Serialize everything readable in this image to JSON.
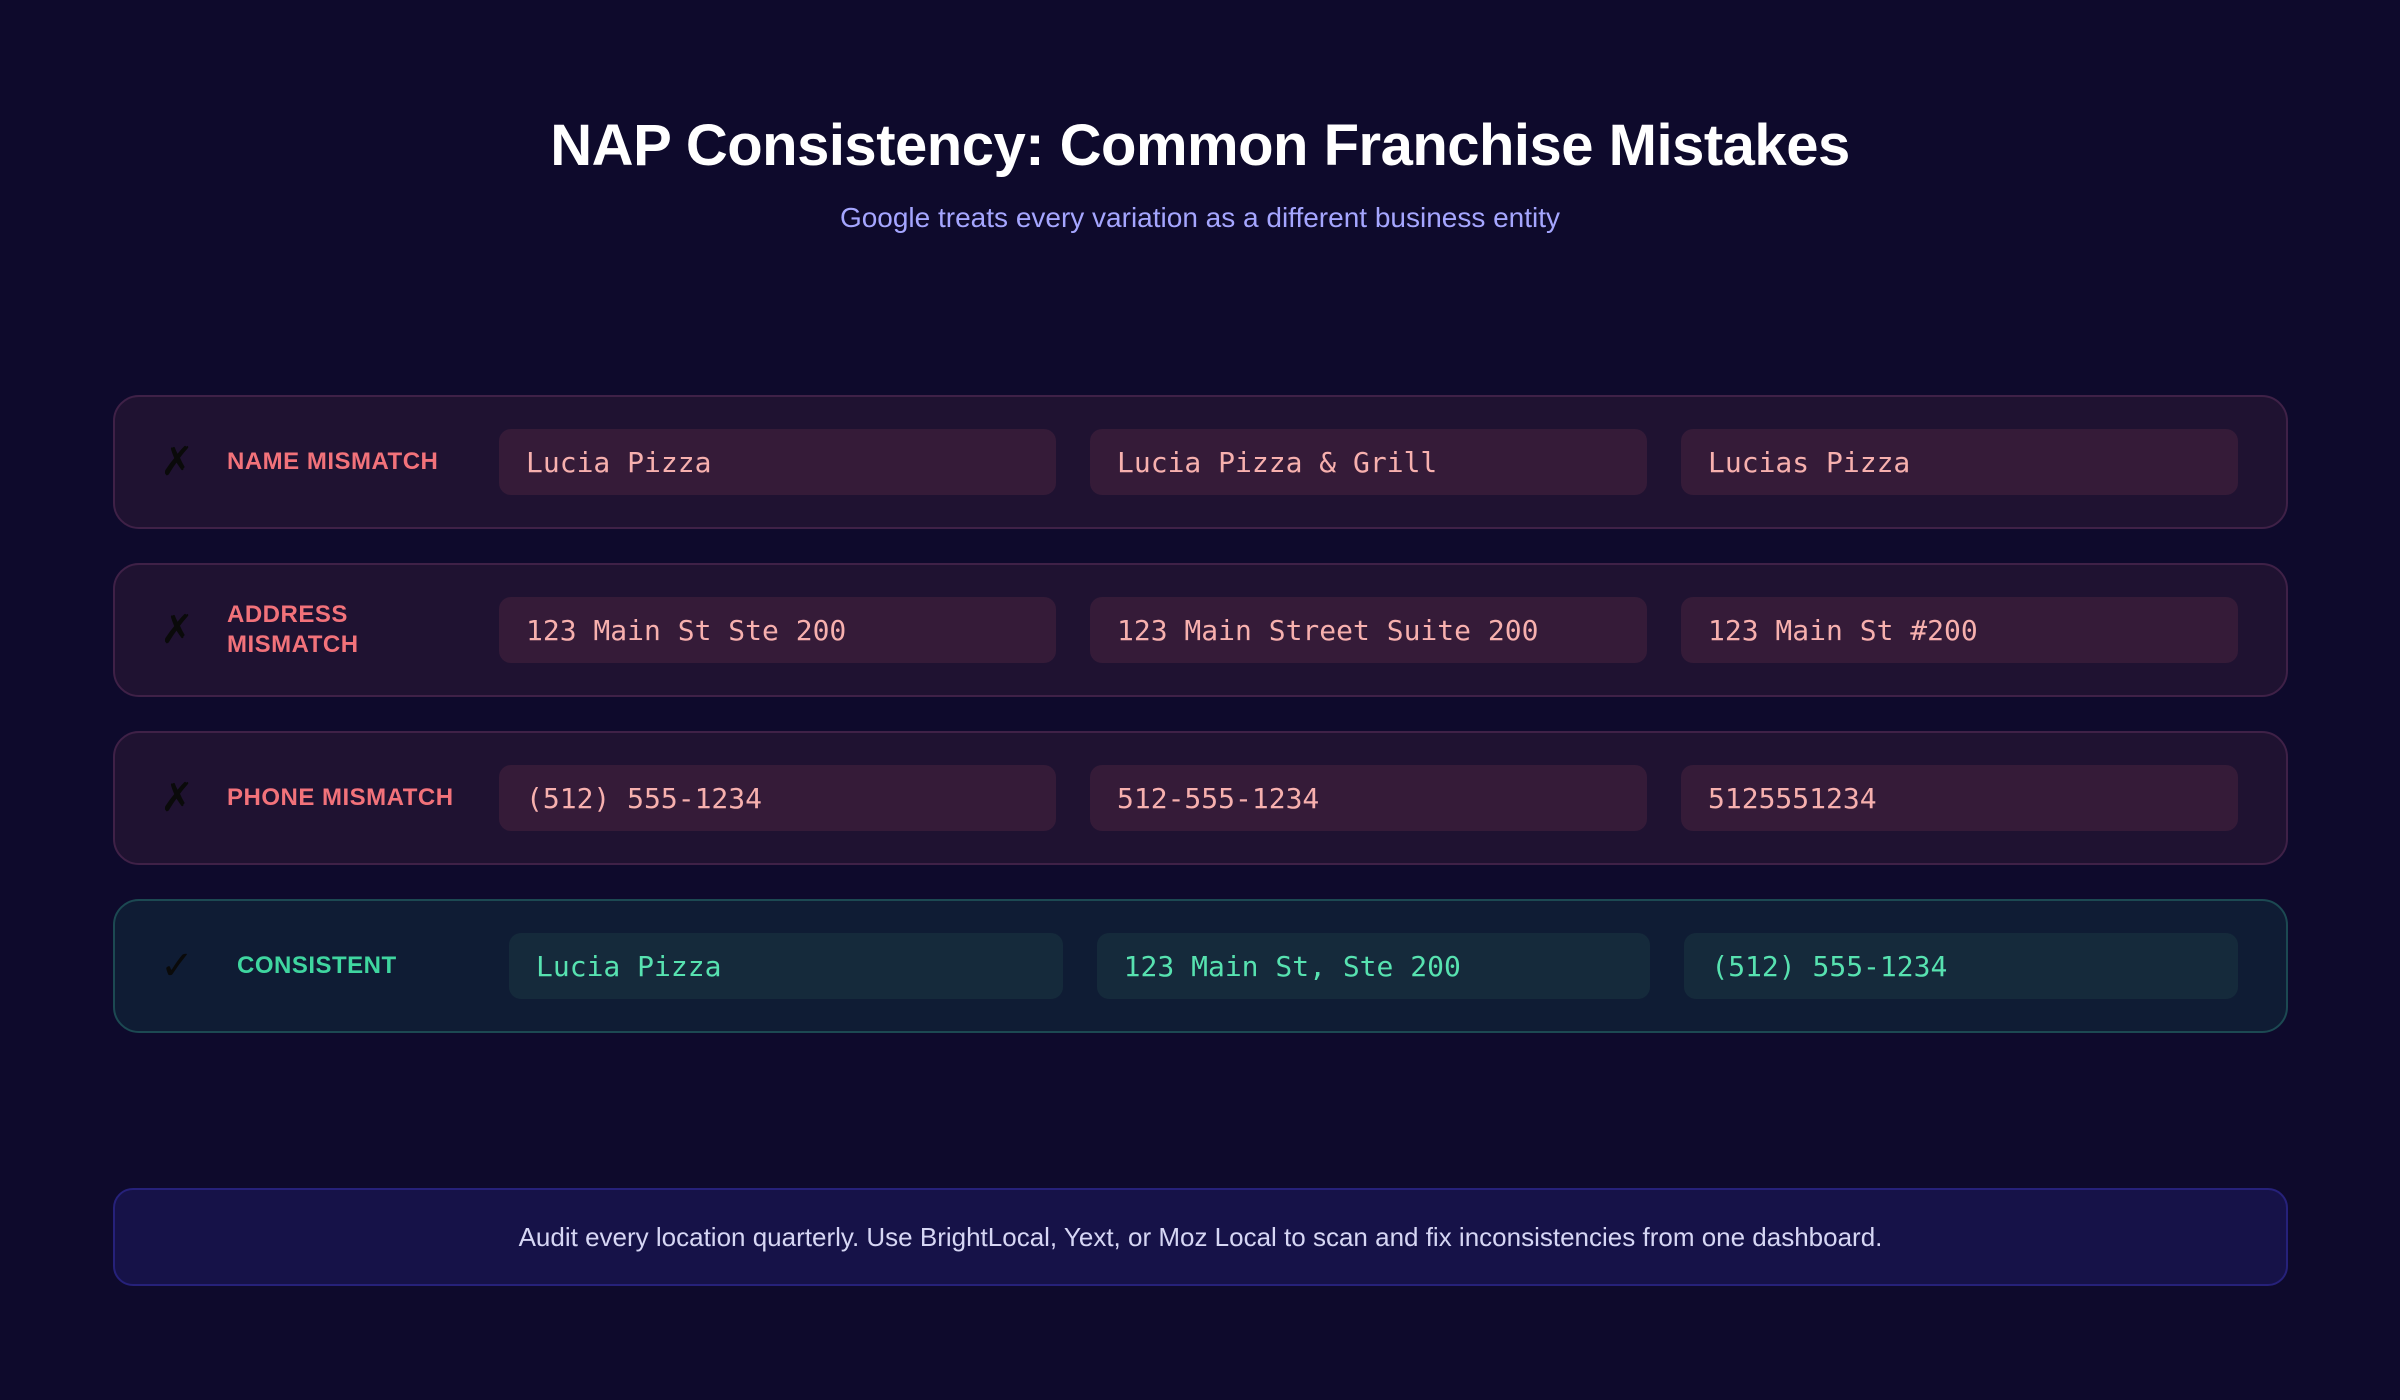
{
  "header": {
    "title": "NAP Consistency: Common Franchise Mistakes",
    "subtitle": "Google treats every variation as a different business entity"
  },
  "rows": [
    {
      "status": "mismatch",
      "mark": "✗",
      "mark_icon": "x-mark-icon",
      "label": "NAME MISMATCH",
      "values": [
        "Lucia Pizza",
        "Lucia Pizza & Grill",
        "Lucias Pizza"
      ]
    },
    {
      "status": "mismatch",
      "mark": "✗",
      "mark_icon": "x-mark-icon",
      "label": "ADDRESS MISMATCH",
      "values": [
        "123 Main St Ste 200",
        "123 Main Street Suite 200",
        "123 Main St #200"
      ]
    },
    {
      "status": "mismatch",
      "mark": "✗",
      "mark_icon": "x-mark-icon",
      "label": "PHONE MISMATCH",
      "values": [
        "(512) 555-1234",
        "512-555-1234",
        "5125551234"
      ]
    },
    {
      "status": "consistent",
      "mark": "✓",
      "mark_icon": "check-mark-icon",
      "label": "CONSISTENT",
      "values": [
        "Lucia Pizza",
        "123 Main St, Ste 200",
        "(512) 555-1234"
      ]
    }
  ],
  "footer": {
    "text": "Audit every location quarterly. Use BrightLocal, Yext, or Moz Local to scan and fix inconsistencies from one dashboard."
  },
  "colors": {
    "background": "#0e0a2c",
    "mismatch_accent": "#f2727a",
    "consistent_accent": "#3fd6a0",
    "subtitle": "#a5a6ff"
  }
}
